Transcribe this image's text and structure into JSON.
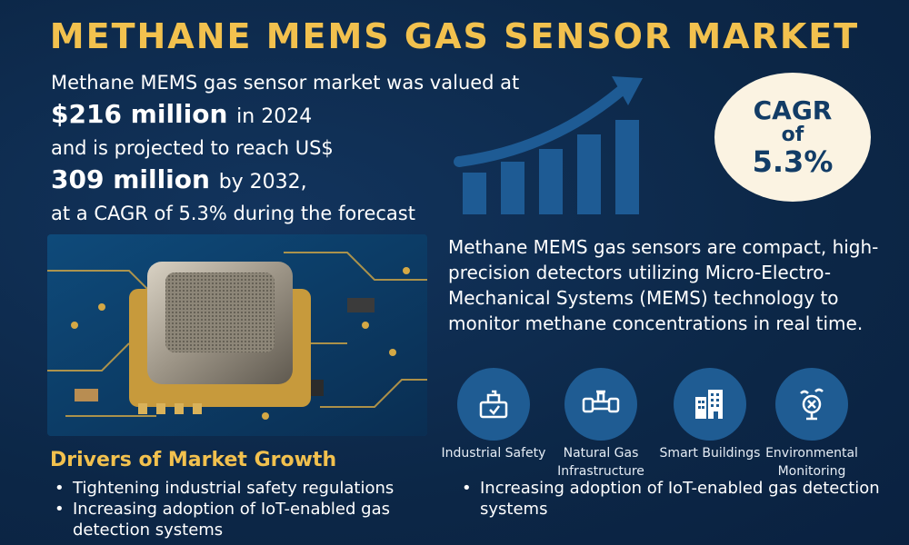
{
  "title": "METHANE MEMS GAS SENSOR MARKET",
  "intro": {
    "line1": "Methane MEMS gas sensor market was valued at",
    "value1": "$216 million",
    "value1_suffix": "in 2024",
    "line3": "and is projected to reach US$",
    "value2": "309 million",
    "value2_suffix": "by 2032,",
    "line5": "at a CAGR of 5.3% during the forecast"
  },
  "cagr_badge": {
    "line1": "CAGR",
    "line2": "of",
    "line3": "5.3%"
  },
  "description": "Methane MEMS gas sensors are compact, high-precision detectors utilizing Micro-Electro-Mechanical Systems (MEMS) technology to monitor methane concentrations in real time.",
  "applications": [
    {
      "icon": "industrial-safety-icon",
      "label": "Industrial Safety"
    },
    {
      "icon": "natural-gas-pipeline-icon",
      "label": "Natural Gas Infrastructure"
    },
    {
      "icon": "smart-building-icon",
      "label": "Smart Buildings"
    },
    {
      "icon": "environmental-monitoring-icon",
      "label": "Environmental Monitoring"
    }
  ],
  "drivers": {
    "title": "Drivers of Market Growth",
    "items": [
      "Tightening industrial safety regulations",
      "Increasing adoption of IoT-enabled gas detection systems"
    ],
    "items_right": [
      "Increasing adoption of IoT-enabled gas detection systems"
    ]
  },
  "colors": {
    "background": "#0c2747",
    "accent_gold": "#f2c14e",
    "icon_blue": "#1f5c93",
    "badge_bg": "#fbf3e2",
    "badge_text": "#123c66"
  }
}
